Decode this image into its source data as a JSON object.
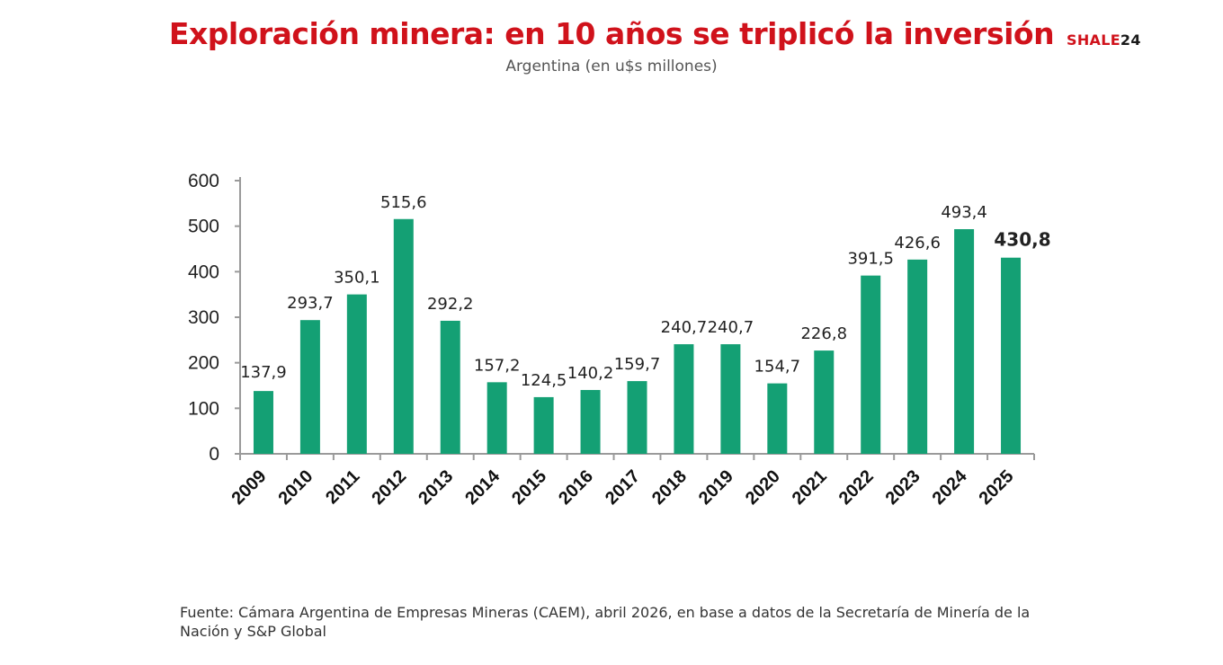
{
  "header": {
    "title": "Exploración minera: en 10 años se triplicó la inversión",
    "subtitle": "Argentina (en u$s millones)",
    "brand_part1": "SHALE",
    "brand_part2": "24"
  },
  "footer": {
    "source": "Fuente: Cámara Argentina de Empresas Mineras (CAEM), abril 2026, en base a datos de la Secretaría de Minería de la Nación y S&P Global"
  },
  "colors": {
    "bar": "#14a074",
    "title": "#d0121b",
    "axis": "#9a9a9a"
  },
  "chart_data": {
    "type": "bar",
    "categories": [
      "2009",
      "2010",
      "2011",
      "2012",
      "2013",
      "2014",
      "2015",
      "2016",
      "2017",
      "2018",
      "2019",
      "2020",
      "2021",
      "2022",
      "2023",
      "2024",
      "2025"
    ],
    "values": [
      137.9,
      293.7,
      350.1,
      515.6,
      292.2,
      157.2,
      124.5,
      140.2,
      159.7,
      240.7,
      240.7,
      154.7,
      226.8,
      391.5,
      426.6,
      493.4,
      430.8
    ],
    "value_labels": [
      "137,9",
      "293,7",
      "350,1",
      "515,6",
      "292,2",
      "157,2",
      "124,5",
      "140,2",
      "159,7",
      "240,7",
      "240,7",
      "154,7",
      "226,8",
      "391,5",
      "426,6",
      "493,4",
      "430,8"
    ],
    "highlighted_label": "2025",
    "yticks": [
      "0",
      "100",
      "200",
      "300",
      "400",
      "500",
      "600"
    ],
    "ylim": [
      0,
      600
    ],
    "grid": false,
    "title": "Exploración minera: en 10 años se triplicó la inversión",
    "xlabel": "",
    "ylabel": ""
  }
}
